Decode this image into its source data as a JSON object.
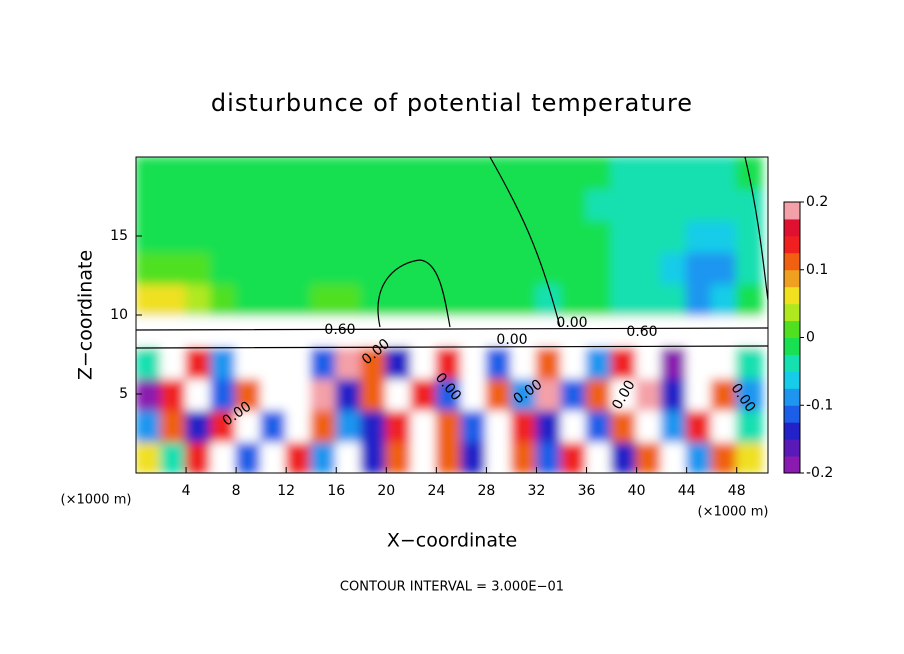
{
  "chart_data": {
    "type": "heatmap",
    "title": "disturbunce of potential temperature",
    "x_label": "X−coordinate",
    "y_label": "Z−coordinate",
    "x_unit": "(×1000 m)",
    "y_unit": "(×1000 m)",
    "footnote": "CONTOUR INTERVAL = 3.000E−01",
    "annotations": [
      "0.60",
      "0.00",
      "0.60",
      "0.00",
      "0.00",
      "0.00",
      "0.00",
      "0.00",
      "0.00",
      "0.00"
    ],
    "xlim": [
      0,
      50.5
    ],
    "ylim": [
      0,
      20
    ],
    "xticks": [
      4,
      8,
      12,
      16,
      20,
      24,
      28,
      32,
      36,
      40,
      44,
      48
    ],
    "yticks": [
      5,
      10,
      15
    ],
    "zlim": [
      -0.2,
      0.2
    ],
    "zticks": [
      0.2,
      0.1,
      0,
      -0.1,
      -0.2
    ],
    "colormap": [
      "#8a1ab0",
      "#5a1ab8",
      "#2222c8",
      "#1d5ee8",
      "#1e96f0",
      "#16cce8",
      "#14e0b0",
      "#18e050",
      "#50e020",
      "#b0e820",
      "#f0e020",
      "#f0a020",
      "#f06010",
      "#f02020",
      "#e01030",
      "#f4a0a8"
    ],
    "x": [
      1,
      3,
      5,
      7,
      9,
      11,
      13,
      15,
      17,
      19,
      21,
      23,
      25,
      27,
      29,
      31,
      33,
      35,
      37,
      39,
      41,
      43,
      45,
      47,
      49
    ],
    "y": [
      1,
      3,
      5,
      7,
      9,
      11,
      13,
      15,
      17,
      19
    ],
    "z": [
      [
        0.05,
        -0.05,
        0.15,
        0.3,
        -0.12,
        0.3,
        0.15,
        -0.1,
        0.3,
        -0.15,
        0.1,
        0.3,
        0.12,
        -0.15,
        0.3,
        0.1,
        -0.12,
        0.15,
        0.3,
        -0.15,
        0.1,
        0.3,
        -0.1,
        0.12,
        0.05
      ],
      [
        -0.1,
        0.1,
        -0.15,
        0.15,
        0.3,
        -0.12,
        0.3,
        0.12,
        -0.08,
        -0.15,
        0.15,
        0.3,
        0.1,
        -0.12,
        0.3,
        0.15,
        -0.15,
        0.3,
        -0.12,
        0.1,
        0.3,
        -0.1,
        0.15,
        0.3,
        -0.05
      ],
      [
        -0.18,
        0.15,
        0.3,
        -0.12,
        0.1,
        0.3,
        0.3,
        0.2,
        -0.15,
        0.1,
        0.3,
        0.15,
        -0.12,
        0.3,
        0.12,
        -0.1,
        0.18,
        -0.12,
        0.1,
        0.3,
        0.2,
        -0.15,
        0.3,
        0.12,
        -0.1
      ],
      [
        -0.05,
        0.3,
        0.15,
        -0.1,
        0.3,
        0.3,
        0.3,
        -0.12,
        0.2,
        0.12,
        -0.15,
        0.3,
        0.15,
        0.3,
        -0.12,
        0.3,
        0.1,
        0.3,
        -0.1,
        0.15,
        0.3,
        -0.18,
        0.3,
        0.3,
        -0.05
      ],
      [
        0.3,
        0.3,
        0.3,
        0.3,
        0.3,
        0.3,
        0.3,
        0.3,
        0.3,
        0.3,
        0.3,
        0.3,
        0.3,
        0.3,
        0.3,
        0.3,
        0.3,
        0.3,
        0.3,
        0.3,
        0.3,
        0.3,
        0.3,
        0.3,
        0.3
      ],
      [
        0.06,
        0.05,
        0.03,
        0.01,
        -0.01,
        -0.01,
        -0.02,
        0,
        0.01,
        -0.01,
        -0.02,
        -0.01,
        -0.02,
        -0.02,
        -0.02,
        -0.01,
        -0.03,
        -0.02,
        -0.02,
        -0.03,
        -0.03,
        -0.05,
        -0.1,
        -0.06,
        -0.02
      ],
      [
        0.02,
        0.02,
        0,
        -0.01,
        -0.02,
        -0.02,
        -0.02,
        -0.01,
        -0.02,
        -0.02,
        -0.02,
        -0.02,
        -0.02,
        -0.02,
        -0.02,
        -0.02,
        -0.02,
        -0.02,
        -0.02,
        -0.03,
        -0.04,
        -0.06,
        -0.08,
        -0.08,
        -0.03
      ],
      [
        -0.01,
        -0.01,
        -0.02,
        -0.02,
        -0.02,
        -0.02,
        -0.02,
        -0.02,
        -0.02,
        -0.02,
        -0.02,
        -0.02,
        -0.02,
        -0.02,
        -0.02,
        -0.02,
        -0.02,
        -0.02,
        -0.02,
        -0.03,
        -0.04,
        -0.05,
        -0.06,
        -0.06,
        -0.03
      ],
      [
        -0.02,
        -0.02,
        -0.02,
        -0.02,
        -0.02,
        -0.02,
        -0.02,
        -0.02,
        -0.02,
        -0.02,
        -0.02,
        -0.02,
        -0.02,
        -0.02,
        -0.02,
        -0.02,
        -0.02,
        -0.02,
        -0.03,
        -0.04,
        -0.05,
        -0.05,
        -0.05,
        -0.04,
        -0.03
      ],
      [
        -0.02,
        -0.02,
        -0.02,
        -0.02,
        -0.02,
        -0.02,
        -0.02,
        -0.02,
        -0.02,
        -0.02,
        -0.02,
        -0.02,
        -0.02,
        -0.02,
        -0.02,
        -0.02,
        -0.02,
        -0.02,
        -0.02,
        -0.03,
        -0.03,
        -0.04,
        -0.04,
        -0.03,
        -0.02
      ]
    ]
  }
}
